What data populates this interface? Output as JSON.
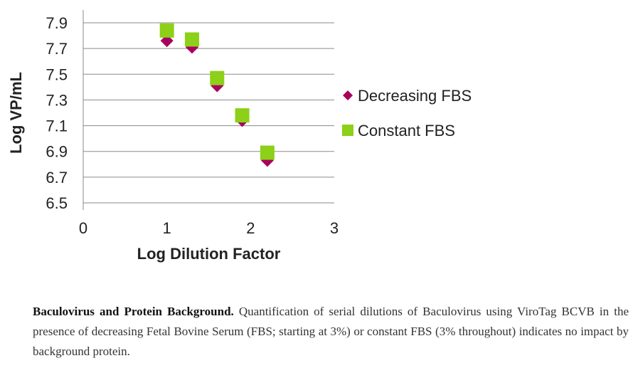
{
  "chart_data": {
    "type": "scatter",
    "xlabel": "Log Dilution Factor",
    "ylabel": "Log VP/mL",
    "xlim": [
      0,
      3
    ],
    "ylim": [
      6.5,
      7.9
    ],
    "xticks": [
      0,
      1,
      2,
      3
    ],
    "yticks": [
      6.5,
      6.7,
      6.9,
      7.1,
      7.3,
      7.5,
      7.7,
      7.9
    ],
    "grid": "horizontal",
    "legend_position": "right",
    "series": [
      {
        "name": "Decreasing FBS",
        "marker": "diamond",
        "color": "#a8005c",
        "points": [
          {
            "x": 1.0,
            "y": 7.76
          },
          {
            "x": 1.3,
            "y": 7.71
          },
          {
            "x": 1.6,
            "y": 7.41
          },
          {
            "x": 1.9,
            "y": 7.14
          },
          {
            "x": 2.2,
            "y": 6.83
          }
        ]
      },
      {
        "name": "Constant FBS",
        "marker": "square",
        "color": "#8cd017",
        "points": [
          {
            "x": 1.0,
            "y": 7.84
          },
          {
            "x": 1.3,
            "y": 7.77
          },
          {
            "x": 1.6,
            "y": 7.47
          },
          {
            "x": 1.9,
            "y": 7.18
          },
          {
            "x": 2.2,
            "y": 6.89
          }
        ]
      }
    ]
  },
  "caption": {
    "title": "Baculovirus and Protein Background.",
    "text": " Quantification of serial dilutions of Baculovirus using ViroTag BCVB in the presence of decreasing Fetal Bovine Serum (FBS; starting at 3%) or constant FBS (3% throughout) indicates no impact by background protein."
  }
}
